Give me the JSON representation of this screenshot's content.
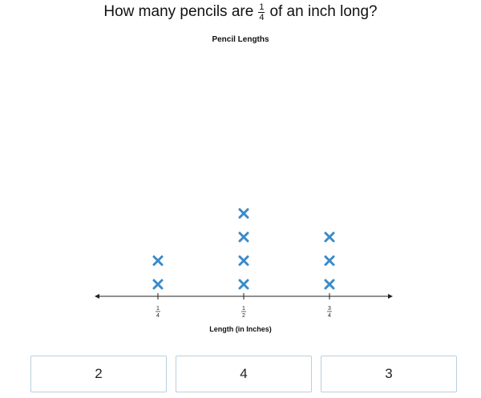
{
  "question": {
    "prefix": "How many pencils are",
    "fraction_num": "1",
    "fraction_den": "4",
    "suffix": "of an inch long?"
  },
  "answer_choices": [
    "2",
    "4",
    "3"
  ],
  "colors": {
    "mark": "#3a8bc9",
    "axis": "#222222",
    "choice_border": "#b8cfe0"
  },
  "chart_data": {
    "type": "line-plot",
    "title": "Pencil Lengths",
    "xlabel": "Length (in Inches)",
    "ylabel": "",
    "categories": [
      {
        "num": "1",
        "den": "4",
        "value": 0.25,
        "count": 2
      },
      {
        "num": "1",
        "den": "2",
        "value": 0.5,
        "count": 4
      },
      {
        "num": "3",
        "den": "4",
        "value": 0.75,
        "count": 3
      }
    ],
    "marker": "x",
    "axis_arrows": true
  }
}
